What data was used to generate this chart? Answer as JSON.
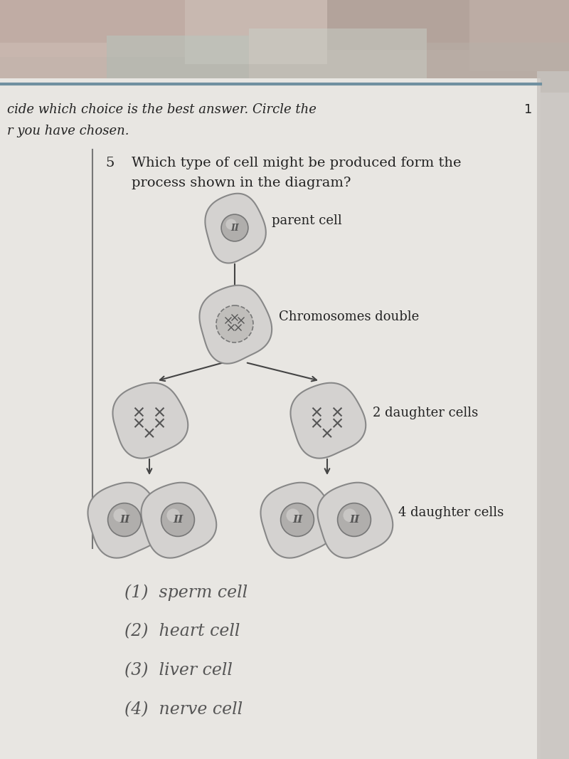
{
  "bg_top_color": "#c8b8b0",
  "page_color": "#dcdad6",
  "header_text1": "cide which choice is the best answer. Circle the",
  "header_text2": "r you have chosen.",
  "question_num": "5",
  "question_text1": "Which type of cell might be produced form the",
  "question_text2": "process shown in the diagram?",
  "label_parent": "parent cell",
  "label_chromosomes": "Chromosomes double",
  "label_2daughter": "2 daughter cells",
  "label_4daughter": "4 daughter cells",
  "answers": [
    "(1)  sperm cell",
    "(2)  heart cell",
    "(3)  liver cell",
    "(4)  nerve cell"
  ],
  "cell_outer_color": "#d0cecc",
  "cell_inner_color": "#b8b6b4",
  "cell_edge_color": "#888888",
  "nucleus_color": "#a0a0a0",
  "text_color": "#333333",
  "answer_color": "#555555",
  "vline_color": "#777777",
  "arrow_color": "#444444"
}
